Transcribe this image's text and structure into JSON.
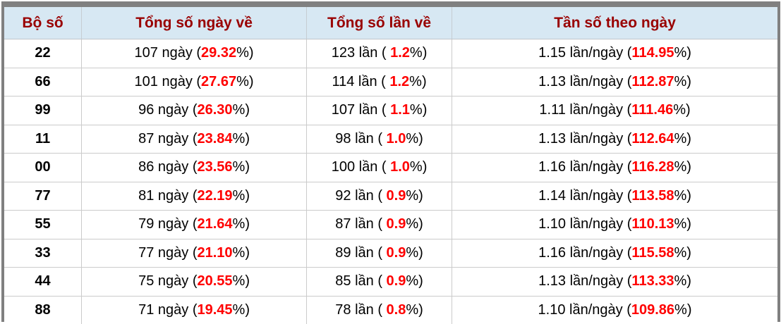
{
  "colors": {
    "frame": "#808080",
    "header_bg": "#d7e8f3",
    "header_text": "#990000",
    "highlight_red": "#ff0000",
    "body_text": "#000000",
    "grid_line": "#cbcbcb"
  },
  "table": {
    "columns": [
      {
        "label": "Bộ số"
      },
      {
        "label": "Tổng số ngày về"
      },
      {
        "label": "Tổng số lần về"
      },
      {
        "label": "Tần số theo ngày"
      }
    ],
    "rows": [
      {
        "pair": "22",
        "days_prefix": "107 ngày (",
        "days_value": "29.32",
        "days_suffix": "%)",
        "times_prefix": "123 lần ( ",
        "times_value": "1.2",
        "times_suffix": "%)",
        "freq_prefix": "1.15 lần/ngày (",
        "freq_value": "114.95",
        "freq_suffix": "%)"
      },
      {
        "pair": "66",
        "days_prefix": "101 ngày (",
        "days_value": "27.67",
        "days_suffix": "%)",
        "times_prefix": "114 lần ( ",
        "times_value": "1.2",
        "times_suffix": "%)",
        "freq_prefix": "1.13 lần/ngày (",
        "freq_value": "112.87",
        "freq_suffix": "%)"
      },
      {
        "pair": "99",
        "days_prefix": "96 ngày (",
        "days_value": "26.30",
        "days_suffix": "%)",
        "times_prefix": "107 lần ( ",
        "times_value": "1.1",
        "times_suffix": "%)",
        "freq_prefix": "1.11 lần/ngày (",
        "freq_value": "111.46",
        "freq_suffix": "%)"
      },
      {
        "pair": "11",
        "days_prefix": "87 ngày (",
        "days_value": "23.84",
        "days_suffix": "%)",
        "times_prefix": "98 lần ( ",
        "times_value": "1.0",
        "times_suffix": "%)",
        "freq_prefix": "1.13 lần/ngày (",
        "freq_value": "112.64",
        "freq_suffix": "%)"
      },
      {
        "pair": "00",
        "days_prefix": "86 ngày (",
        "days_value": "23.56",
        "days_suffix": "%)",
        "times_prefix": "100 lần ( ",
        "times_value": "1.0",
        "times_suffix": "%)",
        "freq_prefix": "1.16 lần/ngày (",
        "freq_value": "116.28",
        "freq_suffix": "%)"
      },
      {
        "pair": "77",
        "days_prefix": "81 ngày (",
        "days_value": "22.19",
        "days_suffix": "%)",
        "times_prefix": "92 lần ( ",
        "times_value": "0.9",
        "times_suffix": "%)",
        "freq_prefix": "1.14 lần/ngày (",
        "freq_value": "113.58",
        "freq_suffix": "%)"
      },
      {
        "pair": "55",
        "days_prefix": "79 ngày (",
        "days_value": "21.64",
        "days_suffix": "%)",
        "times_prefix": "87 lần ( ",
        "times_value": "0.9",
        "times_suffix": "%)",
        "freq_prefix": "1.10 lần/ngày (",
        "freq_value": "110.13",
        "freq_suffix": "%)"
      },
      {
        "pair": "33",
        "days_prefix": "77 ngày (",
        "days_value": "21.10",
        "days_suffix": "%)",
        "times_prefix": "89 lần ( ",
        "times_value": "0.9",
        "times_suffix": "%)",
        "freq_prefix": "1.16 lần/ngày (",
        "freq_value": "115.58",
        "freq_suffix": "%)"
      },
      {
        "pair": "44",
        "days_prefix": "75 ngày (",
        "days_value": "20.55",
        "days_suffix": "%)",
        "times_prefix": "85 lần ( ",
        "times_value": "0.9",
        "times_suffix": "%)",
        "freq_prefix": "1.13 lần/ngày (",
        "freq_value": "113.33",
        "freq_suffix": "%)"
      },
      {
        "pair": "88",
        "days_prefix": "71 ngày (",
        "days_value": "19.45",
        "days_suffix": "%)",
        "times_prefix": "78 lần ( ",
        "times_value": "0.8",
        "times_suffix": "%)",
        "freq_prefix": "1.10 lần/ngày (",
        "freq_value": "109.86",
        "freq_suffix": "%)"
      }
    ]
  }
}
